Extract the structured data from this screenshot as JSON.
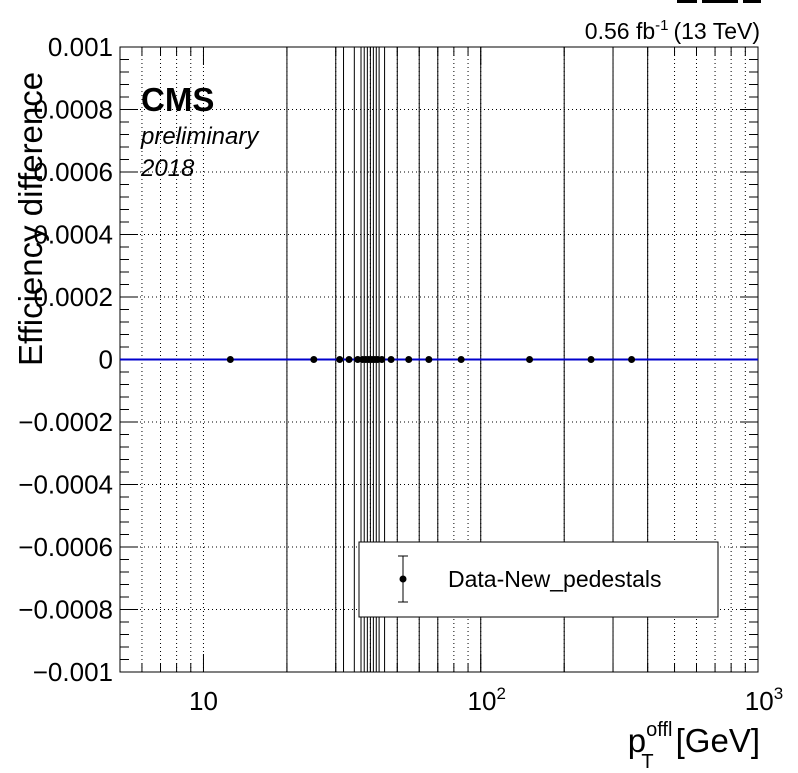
{
  "header": {
    "lumi_value": "0.56 fb",
    "lumi_exp": "-1",
    "energy": "(13 TeV)"
  },
  "cms": {
    "label": "CMS",
    "sub1": "preliminary",
    "sub2": "2018"
  },
  "legend": {
    "entry": "Data-New_pedestals"
  },
  "chart_data": {
    "type": "scatter",
    "x_scale": "log",
    "xlim": [
      5,
      1000
    ],
    "ylim": [
      -0.001,
      0.001
    ],
    "ylabel": "Efficiency difference",
    "xlabel": {
      "main": "p",
      "sup": "offl",
      "sub": "T",
      "unit": "[GeV]"
    },
    "x_ticks": [
      {
        "value": 10,
        "base": "10",
        "exp": ""
      },
      {
        "value": 100,
        "base": "10",
        "exp": "2"
      },
      {
        "value": 1000,
        "base": "10",
        "exp": "3"
      }
    ],
    "y_ticks": [
      {
        "value": 0.001,
        "label": "0.001"
      },
      {
        "value": 0.0008,
        "label": "0.0008"
      },
      {
        "value": 0.0006,
        "label": "0.0006"
      },
      {
        "value": 0.0004,
        "label": "0.0004"
      },
      {
        "value": 0.0002,
        "label": "0.0002"
      },
      {
        "value": 0,
        "label": "0"
      },
      {
        "value": -0.0002,
        "label": "−0.0002"
      },
      {
        "value": -0.0004,
        "label": "−0.0004"
      },
      {
        "value": -0.0006,
        "label": "−0.0006"
      },
      {
        "value": -0.0008,
        "label": "−0.0008"
      },
      {
        "value": -0.001,
        "label": "−0.001"
      }
    ],
    "grid": true,
    "reference_line": {
      "y": 0,
      "color": "#0000cc"
    },
    "legend_position": "bottom-right",
    "bin_edges": [
      5,
      20,
      30,
      32,
      35,
      37,
      38,
      39,
      40,
      41,
      42,
      43,
      45,
      50,
      60,
      70,
      100,
      200,
      300,
      400,
      1000
    ],
    "series": [
      {
        "color": "#000000",
        "points": [
          {
            "x": 12.5,
            "y": 0
          },
          {
            "x": 25,
            "y": 0
          },
          {
            "x": 31,
            "y": 0
          },
          {
            "x": 33.5,
            "y": 0
          },
          {
            "x": 36,
            "y": 0
          },
          {
            "x": 37.5,
            "y": 0
          },
          {
            "x": 38.5,
            "y": 0
          },
          {
            "x": 39.5,
            "y": 0
          },
          {
            "x": 40.5,
            "y": 0
          },
          {
            "x": 41.5,
            "y": 0
          },
          {
            "x": 42.5,
            "y": 0
          },
          {
            "x": 44,
            "y": 0
          },
          {
            "x": 47.5,
            "y": 0
          },
          {
            "x": 55,
            "y": 0
          },
          {
            "x": 65,
            "y": 0
          },
          {
            "x": 85,
            "y": 0
          },
          {
            "x": 150,
            "y": 0
          },
          {
            "x": 250,
            "y": 0
          },
          {
            "x": 350,
            "y": 0
          }
        ]
      }
    ]
  }
}
